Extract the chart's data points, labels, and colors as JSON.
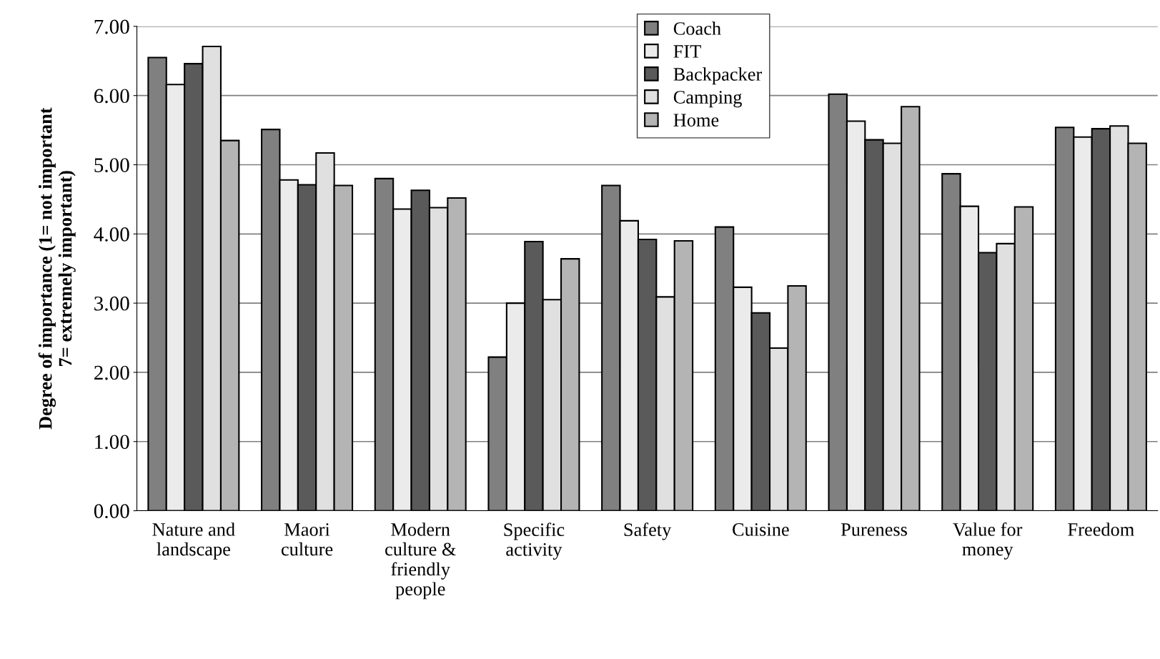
{
  "chart_data": {
    "type": "bar",
    "ylabel": "Degree of importance (1= not important\n7= extremely important)",
    "categories": [
      "Nature and\nlandscape",
      "Maori\nculture",
      "Modern\nculture &\nfriendly\npeople",
      "Specific\nactivity",
      "Safety",
      "Cuisine",
      "Pureness",
      "Value for\nmoney",
      "Freedom"
    ],
    "series": [
      {
        "name": "Coach",
        "color": "#808080",
        "values": [
          6.55,
          5.51,
          4.8,
          2.22,
          4.7,
          4.1,
          6.02,
          4.87,
          5.54
        ]
      },
      {
        "name": "FIT",
        "color": "#ebebeb",
        "values": [
          6.16,
          4.78,
          4.36,
          3.0,
          4.19,
          3.23,
          5.63,
          4.4,
          5.4
        ]
      },
      {
        "name": "Backpacker",
        "color": "#5a5a5a",
        "values": [
          6.46,
          4.71,
          4.63,
          3.89,
          3.92,
          2.86,
          5.36,
          3.73,
          5.52
        ]
      },
      {
        "name": "Camping",
        "color": "#e0e0e0",
        "values": [
          6.71,
          5.17,
          4.38,
          3.05,
          3.09,
          2.35,
          5.31,
          3.86,
          5.56
        ]
      },
      {
        "name": "Home",
        "color": "#b4b4b4",
        "values": [
          5.35,
          4.7,
          4.52,
          3.64,
          3.9,
          3.25,
          5.84,
          4.39,
          5.31
        ]
      }
    ],
    "ylim": [
      0,
      7
    ],
    "yticks": [
      {
        "value": 0,
        "label": "0.00"
      },
      {
        "value": 1,
        "label": "1.00"
      },
      {
        "value": 2,
        "label": "2.00"
      },
      {
        "value": 3,
        "label": "3.00"
      },
      {
        "value": 4,
        "label": "4.00"
      },
      {
        "value": 5,
        "label": "5.00"
      },
      {
        "value": 6,
        "label": "6.00"
      },
      {
        "value": 7,
        "label": "7.00"
      }
    ],
    "grid": "y",
    "legend": "top"
  }
}
